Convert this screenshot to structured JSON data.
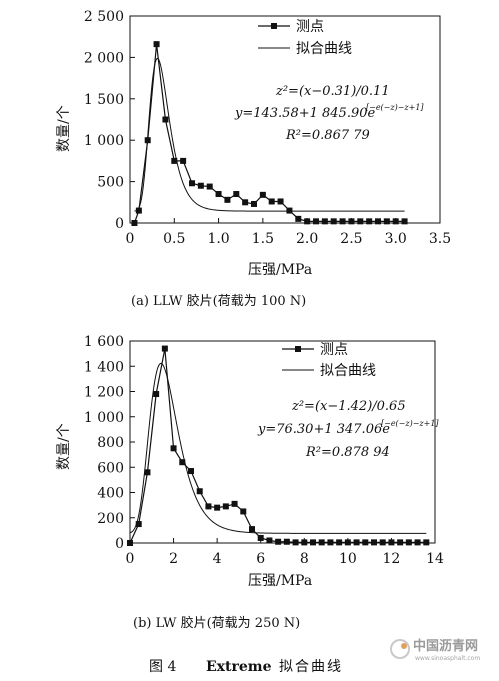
{
  "chart_data": [
    {
      "type": "line",
      "caption": "(a) LLW 胶片(荷载为 100 N)",
      "xlabel": "压强/MPa",
      "ylabel": "数量/个",
      "xlim": [
        0,
        3.5
      ],
      "ylim": [
        0,
        2500
      ],
      "xticks": [
        0,
        0.5,
        1.0,
        1.5,
        2.0,
        2.5,
        3.0,
        3.5
      ],
      "xtick_labels": [
        "0",
        "0.5",
        "1.0",
        "1.5",
        "2.0",
        "2.5",
        "3.0",
        "3.5"
      ],
      "yticks": [
        0,
        500,
        1000,
        1500,
        2000,
        2500
      ],
      "ytick_labels": [
        "0",
        "500",
        "1 000",
        "1 500",
        "2 000",
        "2 500"
      ],
      "legend": {
        "measured": "测点",
        "fitted": "拟合曲线"
      },
      "formula": {
        "line1": "z²=(x−0.31)/0.11",
        "line2": "y=143.58+1 845.90e",
        "exp": "[−e(−z)−z+1]",
        "line3": "R²=0.867 79"
      },
      "fit": {
        "y0": 143.58,
        "A": 1845.9,
        "xc": 0.31,
        "w": 0.11,
        "x_range": [
          0.05,
          3.1
        ]
      },
      "series": [
        {
          "name": "测点",
          "marker": "square",
          "x": [
            0.05,
            0.1,
            0.2,
            0.3,
            0.4,
            0.5,
            0.6,
            0.7,
            0.8,
            0.9,
            1.0,
            1.1,
            1.2,
            1.3,
            1.4,
            1.5,
            1.6,
            1.7,
            1.8,
            1.9,
            2.0,
            2.1,
            2.2,
            2.3,
            2.4,
            2.5,
            2.6,
            2.7,
            2.8,
            2.9,
            3.0,
            3.1
          ],
          "y": [
            0,
            150,
            1000,
            2160,
            1250,
            750,
            750,
            480,
            450,
            440,
            350,
            280,
            350,
            250,
            230,
            340,
            260,
            260,
            150,
            50,
            20,
            20,
            20,
            20,
            20,
            20,
            20,
            20,
            20,
            20,
            20,
            20
          ]
        }
      ]
    },
    {
      "type": "line",
      "caption": "(b) LW 胶片(荷载为 250 N)",
      "xlabel": "压强/MPa",
      "ylabel": "数量/个",
      "xlim": [
        0,
        14
      ],
      "ylim": [
        0,
        1600
      ],
      "xticks": [
        0,
        2,
        4,
        6,
        8,
        10,
        12,
        14
      ],
      "xtick_labels": [
        "0",
        "2",
        "4",
        "6",
        "8",
        "10",
        "12",
        "14"
      ],
      "yticks": [
        0,
        200,
        400,
        600,
        800,
        1000,
        1200,
        1400,
        1600
      ],
      "ytick_labels": [
        "0",
        "200",
        "400",
        "600",
        "800",
        "1 000",
        "1 200",
        "1 400",
        "1 600"
      ],
      "legend": {
        "measured": "测点",
        "fitted": "拟合曲线"
      },
      "formula": {
        "line1": "z²=(x−1.42)/0.65",
        "line2": "y=76.30+1 347.06e",
        "exp": "[−e(−z)−z+1]",
        "line3": "R²=0.878 94"
      },
      "fit": {
        "y0": 76.3,
        "A": 1347.06,
        "xc": 1.42,
        "w": 0.65,
        "x_range": [
          0.0,
          13.6
        ]
      },
      "series": [
        {
          "name": "测点",
          "marker": "square",
          "x": [
            0.0,
            0.4,
            0.8,
            1.2,
            1.6,
            2.0,
            2.4,
            2.8,
            3.2,
            3.6,
            4.0,
            4.4,
            4.8,
            5.2,
            5.6,
            6.0,
            6.4,
            6.8,
            7.2,
            7.6,
            8.0,
            8.4,
            8.8,
            9.2,
            9.6,
            10.0,
            10.4,
            10.8,
            11.2,
            11.6,
            12.0,
            12.4,
            12.8,
            13.2,
            13.6
          ],
          "y": [
            0,
            150,
            560,
            1180,
            1540,
            750,
            640,
            570,
            410,
            290,
            280,
            290,
            310,
            250,
            110,
            40,
            20,
            10,
            10,
            5,
            5,
            5,
            5,
            5,
            5,
            5,
            5,
            5,
            5,
            5,
            5,
            5,
            5,
            5,
            5
          ]
        }
      ]
    }
  ],
  "figure_title": {
    "label": "图 4",
    "name": "Extreme",
    "suffix": "拟合曲线"
  },
  "watermark": {
    "cn": "中国沥青网",
    "url": "www.sinoasphalt.com"
  }
}
